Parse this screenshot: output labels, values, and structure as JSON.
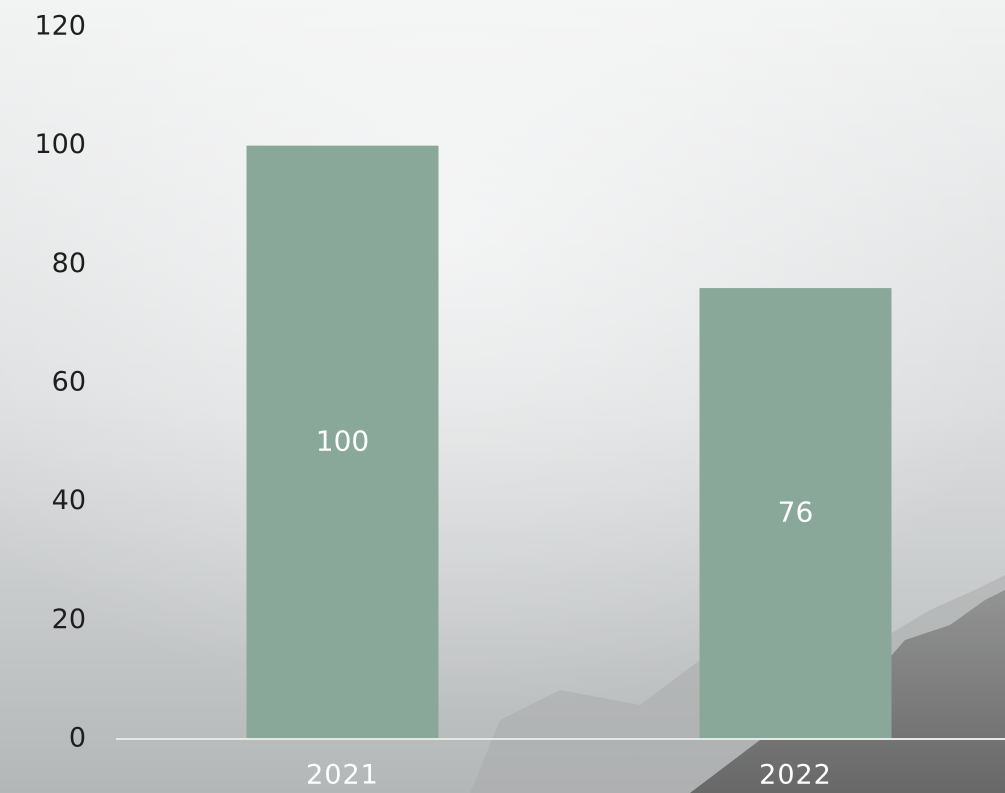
{
  "chart_data": {
    "type": "bar",
    "categories": [
      "2021",
      "2022"
    ],
    "values": [
      100,
      76
    ],
    "color": "#8aa89a",
    "ylim": [
      0,
      120
    ],
    "yticks": [
      0,
      20,
      40,
      60,
      80,
      100,
      120
    ],
    "grid": false
  }
}
